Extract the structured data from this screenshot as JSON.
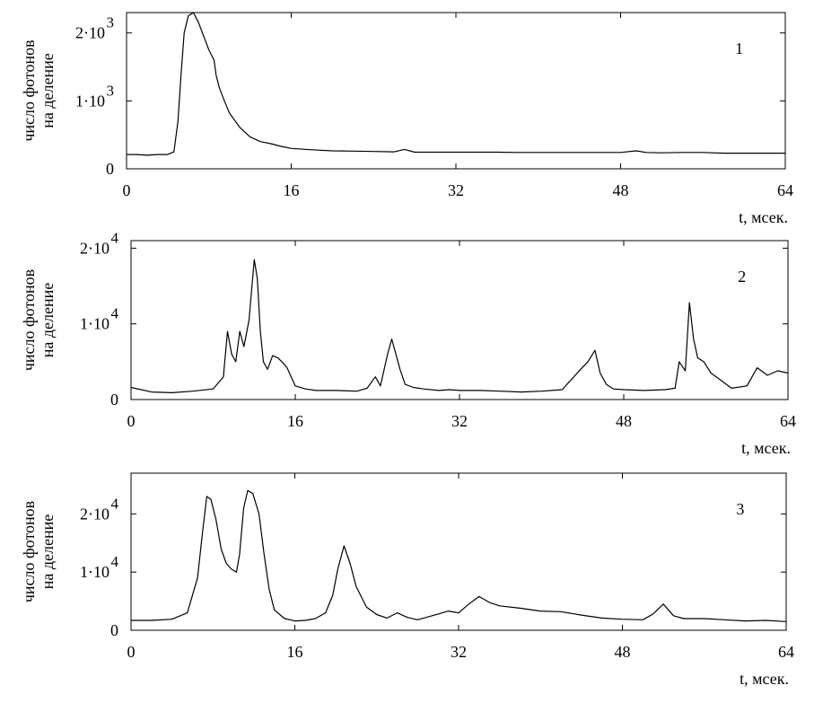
{
  "chart_data": [
    {
      "type": "line",
      "panel_label": "1",
      "ylabel": [
        "число фотонов",
        "на деление"
      ],
      "xlabel": "t, мсек.",
      "xlim": [
        0,
        64
      ],
      "ylim": [
        0,
        2300
      ],
      "x_ticks": [
        "0",
        "16",
        "32",
        "48",
        "64"
      ],
      "y_ticks": [
        {
          "value": 0,
          "mant": "0",
          "exp": ""
        },
        {
          "value": 1000,
          "mant": "1·10",
          "exp": "3"
        },
        {
          "value": 2000,
          "mant": "2·10",
          "exp": "3"
        }
      ],
      "grid": false,
      "series": [
        {
          "x": [
            0,
            1,
            2,
            3,
            4,
            4.6,
            5,
            5.3,
            5.6,
            6,
            6.5,
            7,
            7.5,
            8,
            8.5,
            8.7,
            9,
            9.5,
            10,
            11,
            12,
            13,
            14,
            15,
            16,
            18,
            20,
            22,
            24,
            26,
            27,
            28,
            30,
            32,
            34,
            36,
            38,
            40,
            42,
            44,
            46,
            48,
            49.5,
            50.5,
            52,
            54,
            56,
            58,
            60,
            62,
            64
          ],
          "y": [
            210,
            210,
            200,
            210,
            210,
            250,
            700,
            1400,
            2000,
            2250,
            2300,
            2150,
            1950,
            1750,
            1600,
            1380,
            1200,
            1000,
            820,
            610,
            470,
            400,
            370,
            330,
            300,
            280,
            265,
            260,
            255,
            250,
            285,
            245,
            245,
            245,
            245,
            245,
            240,
            240,
            240,
            240,
            240,
            240,
            265,
            240,
            235,
            240,
            240,
            230,
            230,
            230,
            230
          ]
        }
      ]
    },
    {
      "type": "line",
      "panel_label": "2",
      "ylabel": [
        "число фотонов",
        "на деление"
      ],
      "xlabel": "t, мсек.",
      "xlim": [
        0,
        64
      ],
      "ylim": [
        0,
        21000
      ],
      "x_ticks": [
        "0",
        "16",
        "32",
        "48",
        "64"
      ],
      "y_ticks": [
        {
          "value": 0,
          "mant": "0",
          "exp": ""
        },
        {
          "value": 10000,
          "mant": "1·10",
          "exp": "4"
        },
        {
          "value": 20000,
          "mant": "2·10",
          "exp": "4"
        }
      ],
      "grid": false,
      "series": [
        {
          "x": [
            0,
            2,
            4,
            6,
            8,
            9,
            9.4,
            9.8,
            10.2,
            10.6,
            11,
            11.5,
            12,
            12.3,
            12.6,
            12.9,
            13.3,
            13.8,
            14.3,
            14.7,
            15.2,
            15.6,
            16,
            17,
            18,
            20,
            22,
            23,
            23.8,
            24.3,
            25,
            25.4,
            25.8,
            26.2,
            26.7,
            27.5,
            28.5,
            30,
            31,
            32,
            34,
            36,
            38,
            40,
            42,
            43.8,
            44.5,
            45.2,
            45.7,
            46.3,
            47,
            48,
            50,
            52,
            53,
            53.4,
            54,
            54.4,
            54.8,
            55.2,
            55.8,
            56.5,
            57.5,
            58.5,
            60,
            61,
            62,
            63,
            64
          ],
          "y": [
            1600,
            1000,
            900,
            1100,
            1400,
            3000,
            9000,
            6000,
            5000,
            9000,
            7000,
            10500,
            18500,
            16000,
            9000,
            5000,
            4000,
            5800,
            5500,
            5000,
            4200,
            3000,
            1800,
            1400,
            1200,
            1200,
            1100,
            1500,
            3000,
            1800,
            6000,
            8000,
            6000,
            4000,
            2000,
            1600,
            1400,
            1200,
            1300,
            1200,
            1200,
            1100,
            1000,
            1100,
            1300,
            4000,
            5000,
            6500,
            3500,
            2000,
            1400,
            1300,
            1200,
            1300,
            1500,
            5000,
            3800,
            12800,
            8000,
            5500,
            5000,
            3500,
            2500,
            1500,
            1800,
            4200,
            3200,
            3800,
            3500
          ]
        }
      ]
    },
    {
      "type": "line",
      "panel_label": "3",
      "ylabel": [
        "число фотонов",
        "на деление"
      ],
      "xlabel": "t, мсек.",
      "xlim": [
        0,
        64
      ],
      "ylim": [
        0,
        27000
      ],
      "x_ticks": [
        "0",
        "16",
        "32",
        "48",
        "64"
      ],
      "y_ticks": [
        {
          "value": 0,
          "mant": "0",
          "exp": ""
        },
        {
          "value": 10000,
          "mant": "1·10",
          "exp": "4"
        },
        {
          "value": 20000,
          "mant": "2·10",
          "exp": "4"
        }
      ],
      "grid": false,
      "series": [
        {
          "x": [
            0,
            2,
            4,
            5.5,
            6.5,
            7,
            7.4,
            7.8,
            8.3,
            8.8,
            9.3,
            9.8,
            10.3,
            10.6,
            11,
            11.4,
            11.9,
            12.5,
            13,
            13.5,
            14,
            15,
            16,
            17,
            18,
            19,
            19.7,
            20.2,
            20.8,
            21.4,
            22,
            23,
            24,
            25,
            26,
            27,
            28,
            30,
            31,
            32,
            33,
            34,
            35,
            36,
            38,
            40,
            42,
            44,
            46,
            48,
            50,
            51,
            52,
            53,
            54,
            56,
            58,
            60,
            62,
            64
          ],
          "y": [
            1700,
            1700,
            1900,
            3000,
            9000,
            17000,
            23000,
            22500,
            19000,
            14000,
            11500,
            10500,
            10000,
            13000,
            21000,
            24000,
            23500,
            20000,
            13000,
            7000,
            3500,
            2000,
            1600,
            1700,
            2000,
            3000,
            6000,
            10500,
            14500,
            11500,
            7500,
            4000,
            2700,
            2100,
            3000,
            2200,
            1800,
            2800,
            3300,
            3000,
            4500,
            5800,
            4800,
            4200,
            3800,
            3300,
            3200,
            2600,
            2100,
            1900,
            1800,
            2800,
            4500,
            2500,
            2000,
            2000,
            1800,
            1600,
            1700,
            1500
          ]
        }
      ]
    }
  ]
}
